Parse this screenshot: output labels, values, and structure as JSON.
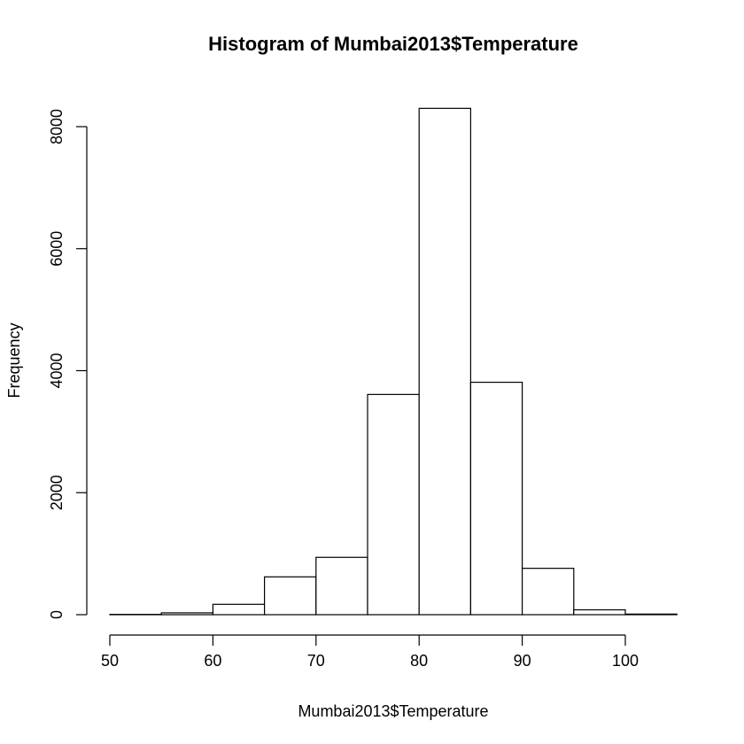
{
  "chart_data": {
    "type": "bar",
    "title": "Histogram of Mumbai2013$Temperature",
    "xlabel": "Mumbai2013$Temperature",
    "ylabel": "Frequency",
    "bins": [
      {
        "start": 50,
        "end": 55,
        "value": 5
      },
      {
        "start": 55,
        "end": 60,
        "value": 30
      },
      {
        "start": 60,
        "end": 65,
        "value": 170
      },
      {
        "start": 65,
        "end": 70,
        "value": 620
      },
      {
        "start": 70,
        "end": 75,
        "value": 940
      },
      {
        "start": 75,
        "end": 80,
        "value": 3610
      },
      {
        "start": 80,
        "end": 85,
        "value": 8300
      },
      {
        "start": 85,
        "end": 90,
        "value": 3810
      },
      {
        "start": 90,
        "end": 95,
        "value": 760
      },
      {
        "start": 95,
        "end": 100,
        "value": 80
      },
      {
        "start": 100,
        "end": 105,
        "value": 10
      }
    ],
    "xticks": [
      "50",
      "60",
      "70",
      "80",
      "90",
      "100"
    ],
    "yticks": [
      "0",
      "2000",
      "4000",
      "6000",
      "8000"
    ],
    "xlim": [
      50,
      105
    ],
    "ylim": [
      0,
      8300
    ],
    "grid": false,
    "legend": "none"
  }
}
